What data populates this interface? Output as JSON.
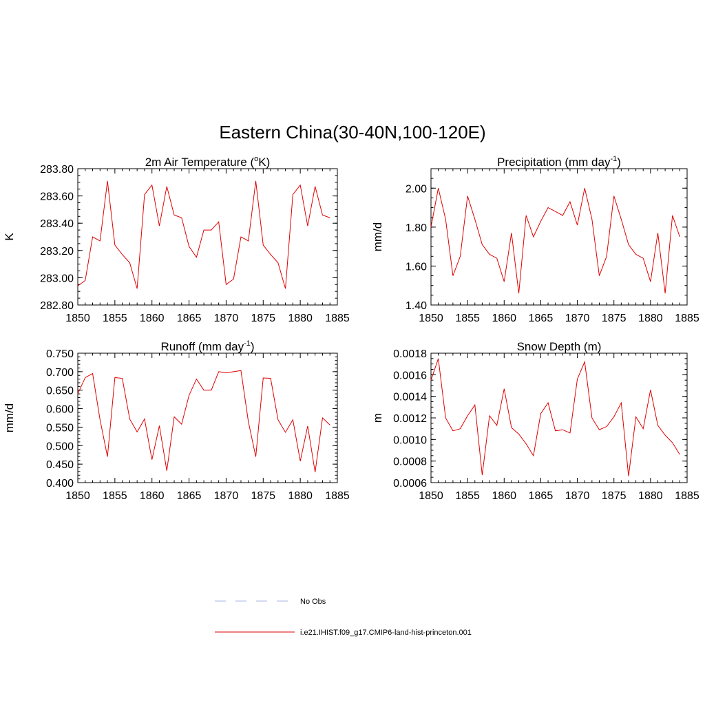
{
  "figure": {
    "title": "Eastern China(30-40N,100-120E)"
  },
  "colors": {
    "model_line": "#e00000",
    "obs_line": "#a9b4e6",
    "axis": "#000000"
  },
  "legend": {
    "placement": "bottom-center",
    "entries": [
      {
        "label": "No Obs",
        "style": "dashed",
        "color": "#a9b4e6"
      },
      {
        "label": "i.e21.IHIST.f09_g17.CMIP6-land-hist-princeton.001",
        "style": "solid",
        "color": "#e00000"
      }
    ]
  },
  "chart_data": [
    {
      "type": "line",
      "title_main": "2m Air Temperature (",
      "title_sup": "o",
      "title_end": "K)",
      "ylabel": "K",
      "xlim": [
        1850,
        1885
      ],
      "ylim": [
        282.8,
        283.8
      ],
      "xticks": [
        1850,
        1855,
        1860,
        1865,
        1870,
        1875,
        1880,
        1885
      ],
      "yticks": [
        "282.80",
        "283.00",
        "283.20",
        "283.40",
        "283.60",
        "283.80"
      ],
      "ytick_values": [
        282.8,
        283.0,
        283.2,
        283.4,
        283.6,
        283.8
      ],
      "y_minor_step": 0.05,
      "series": [
        {
          "x": [
            1850,
            1851,
            1852,
            1853,
            1854,
            1855,
            1856,
            1857,
            1858,
            1859,
            1860,
            1861,
            1862,
            1863,
            1864,
            1865,
            1866,
            1867,
            1868,
            1869,
            1870,
            1871,
            1872,
            1873,
            1874,
            1875,
            1876,
            1877,
            1878,
            1879,
            1880,
            1881,
            1882,
            1883,
            1884
          ],
          "values": [
            282.94,
            282.98,
            283.3,
            283.27,
            283.71,
            283.24,
            283.17,
            283.11,
            282.92,
            283.61,
            283.68,
            283.38,
            283.67,
            283.46,
            283.44,
            283.23,
            283.15,
            283.35,
            283.35,
            283.41,
            282.95,
            282.99,
            283.3,
            283.27,
            283.71,
            283.24,
            283.17,
            283.11,
            282.92,
            283.61,
            283.68,
            283.38,
            283.67,
            283.46,
            283.44
          ]
        }
      ]
    },
    {
      "type": "line",
      "title_main": "Precipitation (mm day",
      "title_sup": "-1",
      "title_end": ")",
      "ylabel": "mm/d",
      "xlim": [
        1850,
        1885
      ],
      "ylim": [
        1.4,
        2.1
      ],
      "xticks": [
        1850,
        1855,
        1860,
        1865,
        1870,
        1875,
        1880,
        1885
      ],
      "yticks": [
        "1.40",
        "1.60",
        "1.80",
        "2.00"
      ],
      "ytick_values": [
        1.4,
        1.6,
        1.8,
        2.0
      ],
      "y_minor_step": 0.05,
      "series": [
        {
          "x": [
            1850,
            1851,
            1852,
            1853,
            1854,
            1855,
            1856,
            1857,
            1858,
            1859,
            1860,
            1861,
            1862,
            1863,
            1864,
            1865,
            1866,
            1867,
            1868,
            1869,
            1870,
            1871,
            1872,
            1873,
            1874,
            1875,
            1876,
            1877,
            1878,
            1879,
            1880,
            1881,
            1882,
            1883,
            1884
          ],
          "values": [
            1.8,
            2.0,
            1.84,
            1.55,
            1.65,
            1.96,
            1.84,
            1.71,
            1.66,
            1.64,
            1.52,
            1.77,
            1.46,
            1.86,
            1.75,
            1.83,
            1.9,
            1.88,
            1.86,
            1.93,
            1.81,
            2.0,
            1.84,
            1.55,
            1.65,
            1.96,
            1.84,
            1.71,
            1.66,
            1.64,
            1.52,
            1.77,
            1.46,
            1.86,
            1.75
          ]
        }
      ]
    },
    {
      "type": "line",
      "title_main": "Runoff (mm day",
      "title_sup": "-1",
      "title_end": ")",
      "ylabel": "mm/d",
      "xlim": [
        1850,
        1885
      ],
      "ylim": [
        0.4,
        0.75
      ],
      "xticks": [
        1850,
        1855,
        1860,
        1865,
        1870,
        1875,
        1880,
        1885
      ],
      "yticks": [
        "0.400",
        "0.450",
        "0.500",
        "0.550",
        "0.600",
        "0.650",
        "0.700",
        "0.750"
      ],
      "ytick_values": [
        0.4,
        0.45,
        0.5,
        0.55,
        0.6,
        0.65,
        0.7,
        0.75
      ],
      "y_minor_step": 0.01,
      "series": [
        {
          "x": [
            1850,
            1851,
            1852,
            1853,
            1854,
            1855,
            1856,
            1857,
            1858,
            1859,
            1860,
            1861,
            1862,
            1863,
            1864,
            1865,
            1866,
            1867,
            1868,
            1869,
            1870,
            1871,
            1872,
            1873,
            1874,
            1875,
            1876,
            1877,
            1878,
            1879,
            1880,
            1881,
            1882,
            1883,
            1884
          ],
          "values": [
            0.64,
            0.684,
            0.695,
            0.57,
            0.47,
            0.684,
            0.682,
            0.572,
            0.537,
            0.572,
            0.462,
            0.554,
            0.432,
            0.578,
            0.558,
            0.636,
            0.68,
            0.65,
            0.65,
            0.7,
            0.697,
            0.7,
            0.703,
            0.565,
            0.47,
            0.683,
            0.682,
            0.57,
            0.536,
            0.57,
            0.458,
            0.553,
            0.428,
            0.575,
            0.556
          ]
        }
      ]
    },
    {
      "type": "line",
      "title_main": "Snow Depth (m)",
      "title_sup": "",
      "title_end": "",
      "ylabel": "m",
      "xlim": [
        1850,
        1885
      ],
      "ylim": [
        0.0006,
        0.0018
      ],
      "xticks": [
        1850,
        1855,
        1860,
        1865,
        1870,
        1875,
        1880,
        1885
      ],
      "yticks": [
        "0.0006",
        "0.0008",
        "0.0010",
        "0.0012",
        "0.0014",
        "0.0016",
        "0.0018"
      ],
      "ytick_values": [
        0.0006,
        0.0008,
        0.001,
        0.0012,
        0.0014,
        0.0016,
        0.0018
      ],
      "y_minor_step": 5e-05,
      "series": [
        {
          "x": [
            1850,
            1851,
            1852,
            1853,
            1854,
            1855,
            1856,
            1857,
            1858,
            1859,
            1860,
            1861,
            1862,
            1863,
            1864,
            1865,
            1866,
            1867,
            1868,
            1869,
            1870,
            1871,
            1872,
            1873,
            1874,
            1875,
            1876,
            1877,
            1878,
            1879,
            1880,
            1881,
            1882,
            1883,
            1884
          ],
          "values": [
            0.00155,
            0.00175,
            0.0012,
            0.00108,
            0.0011,
            0.00122,
            0.00132,
            0.00067,
            0.00122,
            0.00113,
            0.00147,
            0.00111,
            0.00105,
            0.00096,
            0.00085,
            0.00124,
            0.00134,
            0.00108,
            0.00109,
            0.00106,
            0.00156,
            0.00172,
            0.0012,
            0.00109,
            0.00112,
            0.00121,
            0.00134,
            0.00066,
            0.00121,
            0.0011,
            0.00146,
            0.00113,
            0.00104,
            0.00097,
            0.00086
          ]
        }
      ]
    }
  ]
}
